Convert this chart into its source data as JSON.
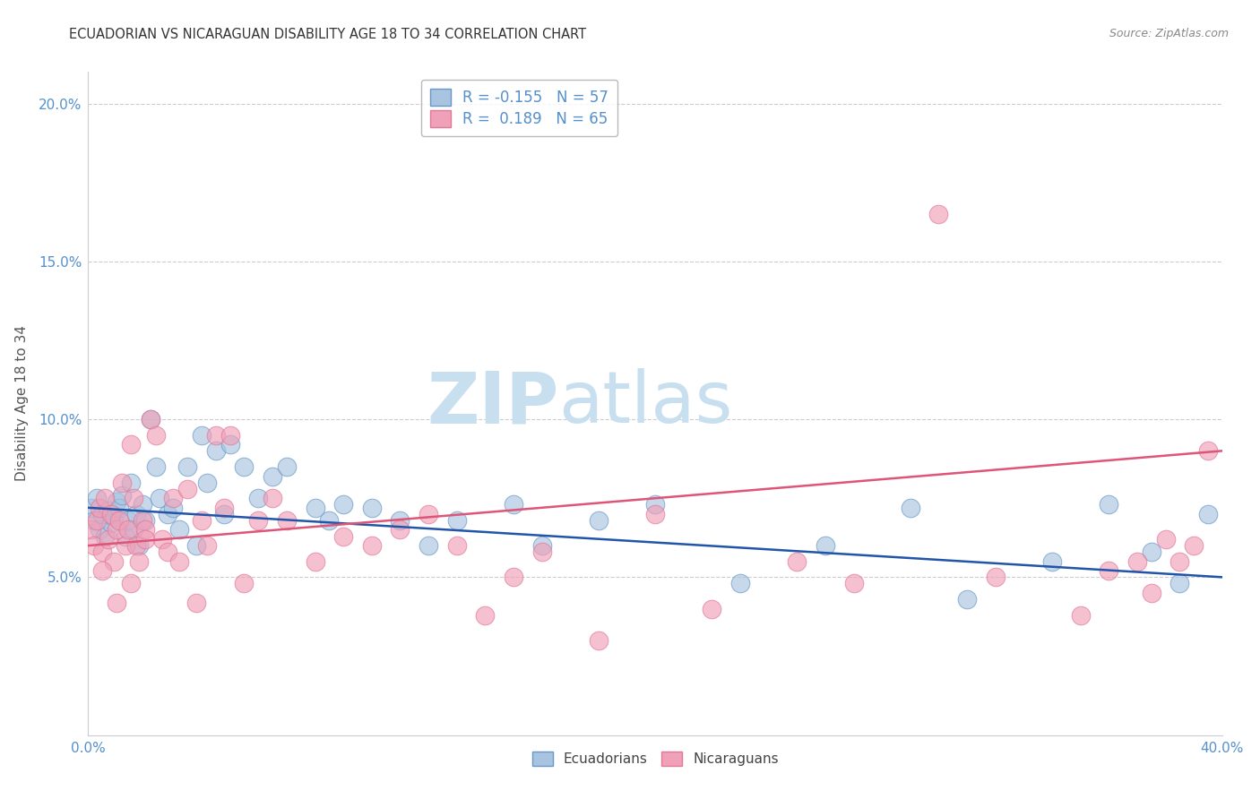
{
  "title": "ECUADORIAN VS NICARAGUAN DISABILITY AGE 18 TO 34 CORRELATION CHART",
  "source": "Source: ZipAtlas.com",
  "ylabel": "Disability Age 18 to 34",
  "xlim": [
    0.0,
    0.4
  ],
  "ylim": [
    0.0,
    0.21
  ],
  "xticks": [
    0.0,
    0.05,
    0.1,
    0.15,
    0.2,
    0.25,
    0.3,
    0.35,
    0.4
  ],
  "yticks": [
    0.05,
    0.1,
    0.15,
    0.2
  ],
  "ecuadorian_color": "#a8c4e0",
  "nicaraguan_color": "#f0a0b8",
  "ecuadorian_edge_color": "#6898c8",
  "nicaraguan_edge_color": "#e07898",
  "ecuadorian_line_color": "#2255aa",
  "nicaraguan_line_color": "#dd5577",
  "watermark_color": "#c8dff0",
  "background_color": "#ffffff",
  "grid_color": "#cccccc",
  "title_color": "#333333",
  "tick_color": "#5590cc",
  "ylabel_color": "#555555",
  "source_color": "#888888",
  "r_ecu": -0.155,
  "r_nic": 0.189,
  "n_ecu": 57,
  "n_nic": 65,
  "ecuadorian_points_x": [
    0.001,
    0.002,
    0.003,
    0.004,
    0.005,
    0.006,
    0.007,
    0.008,
    0.009,
    0.01,
    0.011,
    0.012,
    0.013,
    0.014,
    0.015,
    0.016,
    0.017,
    0.018,
    0.019,
    0.02,
    0.022,
    0.024,
    0.025,
    0.028,
    0.03,
    0.032,
    0.035,
    0.038,
    0.04,
    0.042,
    0.045,
    0.048,
    0.05,
    0.055,
    0.06,
    0.065,
    0.07,
    0.08,
    0.085,
    0.09,
    0.1,
    0.11,
    0.12,
    0.13,
    0.15,
    0.16,
    0.18,
    0.2,
    0.23,
    0.26,
    0.29,
    0.31,
    0.34,
    0.36,
    0.375,
    0.385,
    0.395
  ],
  "ecuadorian_points_y": [
    0.072,
    0.068,
    0.075,
    0.065,
    0.07,
    0.063,
    0.071,
    0.067,
    0.069,
    0.074,
    0.072,
    0.076,
    0.063,
    0.068,
    0.08,
    0.065,
    0.07,
    0.06,
    0.073,
    0.068,
    0.1,
    0.085,
    0.075,
    0.07,
    0.072,
    0.065,
    0.085,
    0.06,
    0.095,
    0.08,
    0.09,
    0.07,
    0.092,
    0.085,
    0.075,
    0.082,
    0.085,
    0.072,
    0.068,
    0.073,
    0.072,
    0.068,
    0.06,
    0.068,
    0.073,
    0.06,
    0.068,
    0.073,
    0.048,
    0.06,
    0.072,
    0.043,
    0.055,
    0.073,
    0.058,
    0.048,
    0.07
  ],
  "nicaraguan_points_x": [
    0.001,
    0.002,
    0.003,
    0.004,
    0.005,
    0.006,
    0.007,
    0.008,
    0.009,
    0.01,
    0.011,
    0.012,
    0.013,
    0.014,
    0.015,
    0.016,
    0.017,
    0.018,
    0.019,
    0.02,
    0.022,
    0.024,
    0.026,
    0.028,
    0.03,
    0.032,
    0.035,
    0.038,
    0.04,
    0.042,
    0.045,
    0.048,
    0.05,
    0.055,
    0.06,
    0.065,
    0.07,
    0.08,
    0.09,
    0.1,
    0.11,
    0.12,
    0.13,
    0.14,
    0.15,
    0.16,
    0.18,
    0.2,
    0.22,
    0.25,
    0.27,
    0.3,
    0.32,
    0.35,
    0.36,
    0.37,
    0.375,
    0.38,
    0.385,
    0.39,
    0.395,
    0.005,
    0.01,
    0.015,
    0.02
  ],
  "nicaraguan_points_y": [
    0.065,
    0.06,
    0.068,
    0.072,
    0.058,
    0.075,
    0.062,
    0.07,
    0.055,
    0.065,
    0.068,
    0.08,
    0.06,
    0.065,
    0.092,
    0.075,
    0.06,
    0.055,
    0.068,
    0.065,
    0.1,
    0.095,
    0.062,
    0.058,
    0.075,
    0.055,
    0.078,
    0.042,
    0.068,
    0.06,
    0.095,
    0.072,
    0.095,
    0.048,
    0.068,
    0.075,
    0.068,
    0.055,
    0.063,
    0.06,
    0.065,
    0.07,
    0.06,
    0.038,
    0.05,
    0.058,
    0.03,
    0.07,
    0.04,
    0.055,
    0.048,
    0.165,
    0.05,
    0.038,
    0.052,
    0.055,
    0.045,
    0.062,
    0.055,
    0.06,
    0.09,
    0.052,
    0.042,
    0.048,
    0.062
  ]
}
